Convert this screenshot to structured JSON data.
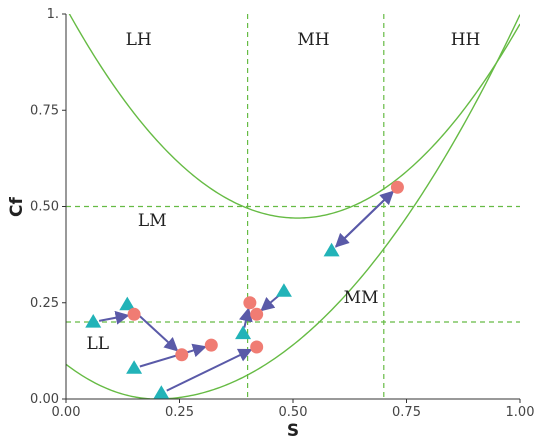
{
  "chart_data": {
    "type": "scatter",
    "title": "",
    "xlabel": "S",
    "ylabel": "Cf",
    "xlim": [
      0,
      1
    ],
    "ylim": [
      0,
      1
    ],
    "grid": false,
    "x_ticks": [
      "0.00",
      "0.25",
      "0.50",
      "0.75",
      "1.00"
    ],
    "y_ticks": [
      "0.00",
      "0.25",
      "0.50",
      "0.75",
      "1."
    ],
    "x_tick_values": [
      0,
      0.25,
      0.5,
      0.75,
      1
    ],
    "y_tick_values": [
      0,
      0.25,
      0.5,
      0.75,
      1
    ],
    "dashed_vlines": [
      0.4,
      0.7
    ],
    "dashed_hlines": [
      0.2,
      0.5
    ],
    "curves": [
      {
        "formula": "cf = (s - 0.5)^2 * 2 + 0.47",
        "color": "#66bb44"
      },
      {
        "formula": "cf = s^2 for s >= 0.3, rising U from (0,0.09)",
        "color": "#66bb44"
      }
    ],
    "regions": [
      {
        "label": "LH",
        "x": 0.16,
        "y": 0.92
      },
      {
        "label": "MH",
        "x": 0.545,
        "y": 0.92
      },
      {
        "label": "HH",
        "x": 0.88,
        "y": 0.92
      },
      {
        "label": "LM",
        "x": 0.19,
        "y": 0.45
      },
      {
        "label": "MM",
        "x": 0.65,
        "y": 0.25
      },
      {
        "label": "LL",
        "x": 0.07,
        "y": 0.13
      }
    ],
    "arrows": [
      {
        "from": [
          0.06,
          0.2
        ],
        "to": [
          0.15,
          0.22
        ]
      },
      {
        "from": [
          0.135,
          0.245
        ],
        "to": [
          0.255,
          0.115
        ]
      },
      {
        "from": [
          0.15,
          0.08
        ],
        "to": [
          0.32,
          0.14
        ]
      },
      {
        "from": [
          0.21,
          0.015
        ],
        "to": [
          0.42,
          0.135
        ]
      },
      {
        "from": [
          0.39,
          0.17
        ],
        "to": [
          0.405,
          0.25
        ]
      },
      {
        "from": [
          0.48,
          0.28
        ],
        "to": [
          0.42,
          0.22
        ]
      },
      {
        "from": [
          0.585,
          0.385
        ],
        "to": [
          0.73,
          0.55
        ]
      },
      {
        "from": [
          0.73,
          0.55
        ],
        "to": [
          0.585,
          0.385
        ]
      }
    ],
    "series": [
      {
        "marker": "triangle",
        "color": "#22b3b8",
        "points": [
          [
            0.06,
            0.2
          ],
          [
            0.135,
            0.245
          ],
          [
            0.15,
            0.08
          ],
          [
            0.21,
            0.015
          ],
          [
            0.39,
            0.17
          ],
          [
            0.48,
            0.28
          ],
          [
            0.585,
            0.385
          ]
        ]
      },
      {
        "marker": "circle",
        "color": "#f07c73",
        "points": [
          [
            0.15,
            0.22
          ],
          [
            0.255,
            0.115
          ],
          [
            0.32,
            0.14
          ],
          [
            0.42,
            0.135
          ],
          [
            0.405,
            0.25
          ],
          [
            0.42,
            0.22
          ],
          [
            0.73,
            0.55
          ]
        ]
      }
    ],
    "colors": {
      "curve": "#66bb44",
      "dashed": "#66bb44",
      "arrow": "#5a5aa8",
      "axis": "#333333"
    }
  }
}
